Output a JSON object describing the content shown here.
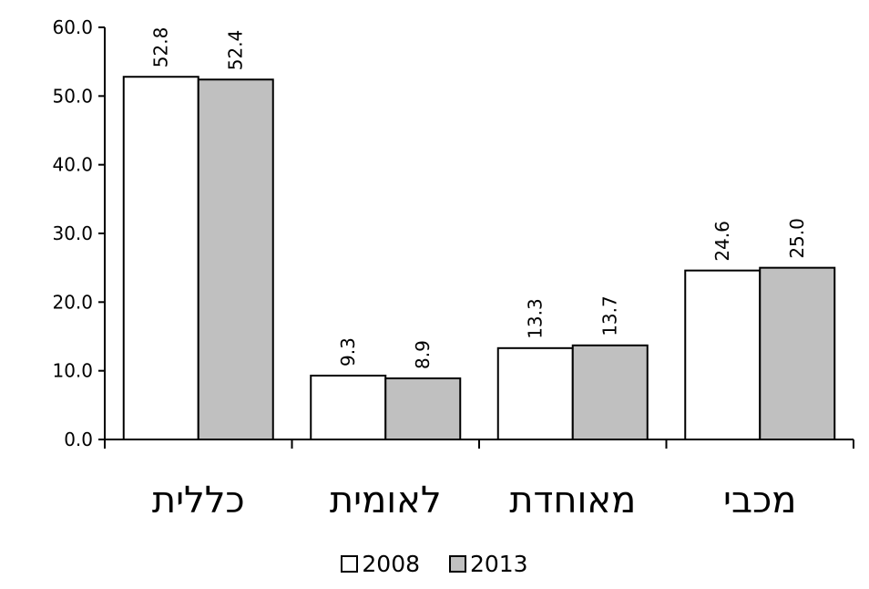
{
  "chart_data": {
    "type": "bar",
    "categories": [
      "כללית",
      "לאומית",
      "מאוחדת",
      "מכבי"
    ],
    "series": [
      {
        "name": "2008",
        "values": [
          52.8,
          9.3,
          13.3,
          24.6
        ],
        "color": "#ffffff"
      },
      {
        "name": "2013",
        "values": [
          52.4,
          8.9,
          13.7,
          25.0
        ],
        "color": "#c0c0c0"
      }
    ],
    "ylim": [
      0,
      60
    ],
    "yticks": [
      "0.0",
      "10.0",
      "20.0",
      "30.0",
      "40.0",
      "50.0",
      "60.0"
    ],
    "data_labels": true,
    "grid": false,
    "legend_position": "bottom",
    "title": "",
    "xlabel": "",
    "ylabel": ""
  }
}
